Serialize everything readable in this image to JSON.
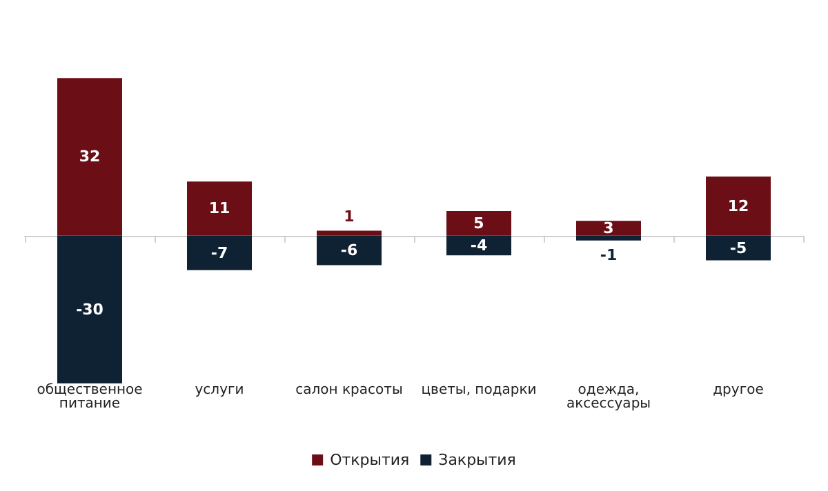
{
  "chart_data": {
    "type": "bar",
    "stacked": true,
    "data_labels": true,
    "legend": "bottom",
    "grid": false,
    "categories": [
      "общественное питание",
      "услуги",
      "салон красоты",
      "цветы, подарки",
      "одежда, аксессуары",
      "другое"
    ],
    "series": [
      {
        "name": "Открытия",
        "color": "#6b0e16",
        "values": [
          32,
          11,
          1,
          5,
          3,
          12
        ]
      },
      {
        "name": "Закрытия",
        "color": "#0f2233",
        "values": [
          -30,
          -7,
          -6,
          -4,
          -1,
          -5
        ]
      }
    ]
  }
}
